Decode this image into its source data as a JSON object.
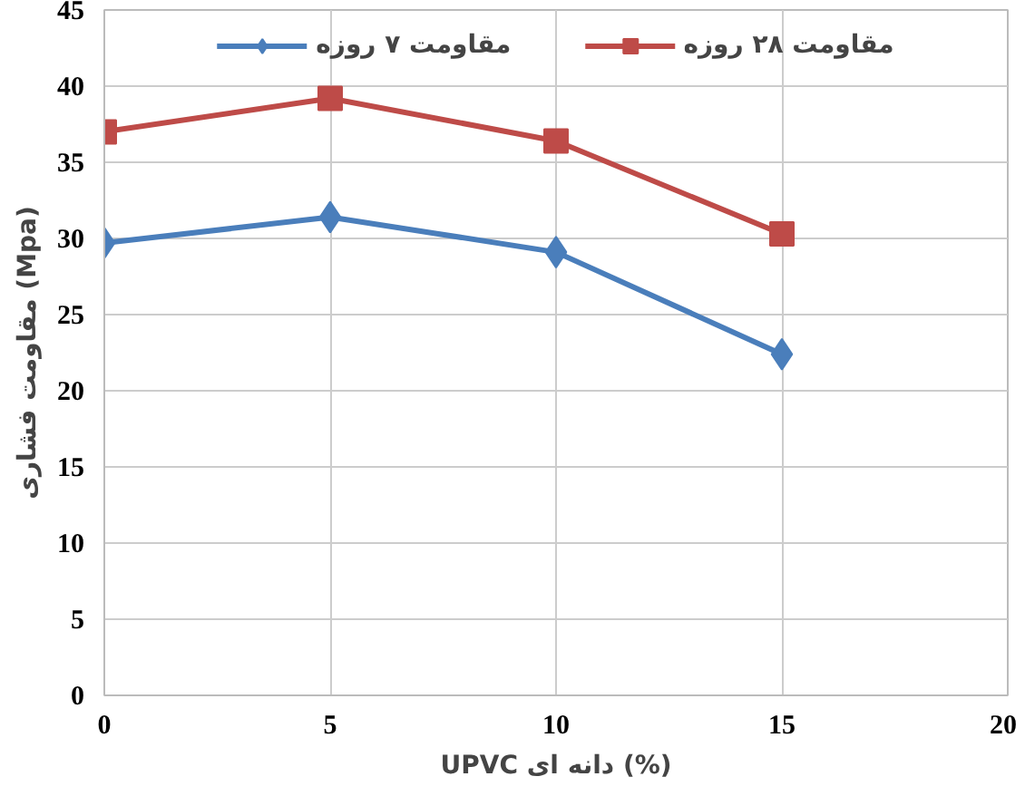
{
  "chart_data": {
    "type": "line",
    "xlabel": "UPVC دانه ای (%)",
    "ylabel": "مقاومت فشاری (Mpa)",
    "x": [
      0,
      5,
      10,
      15
    ],
    "series": [
      {
        "name": "مقاومت ۷ روزه",
        "color": "#4a7ebb",
        "marker": "diamond",
        "values": [
          29.7,
          31.4,
          29.1,
          22.4
        ]
      },
      {
        "name": "مقاومت ۲۸ روزه",
        "color": "#be4b48",
        "marker": "square",
        "values": [
          37.0,
          39.2,
          36.4,
          30.3
        ]
      }
    ],
    "xlim": [
      0,
      20
    ],
    "xticks": [
      0,
      5,
      10,
      15,
      20
    ],
    "ylim": [
      0,
      45
    ],
    "yticks": [
      0,
      5,
      10,
      15,
      20,
      25,
      30,
      35,
      40,
      45
    ],
    "grid": true,
    "legend": "top",
    "line_style": "solid"
  }
}
